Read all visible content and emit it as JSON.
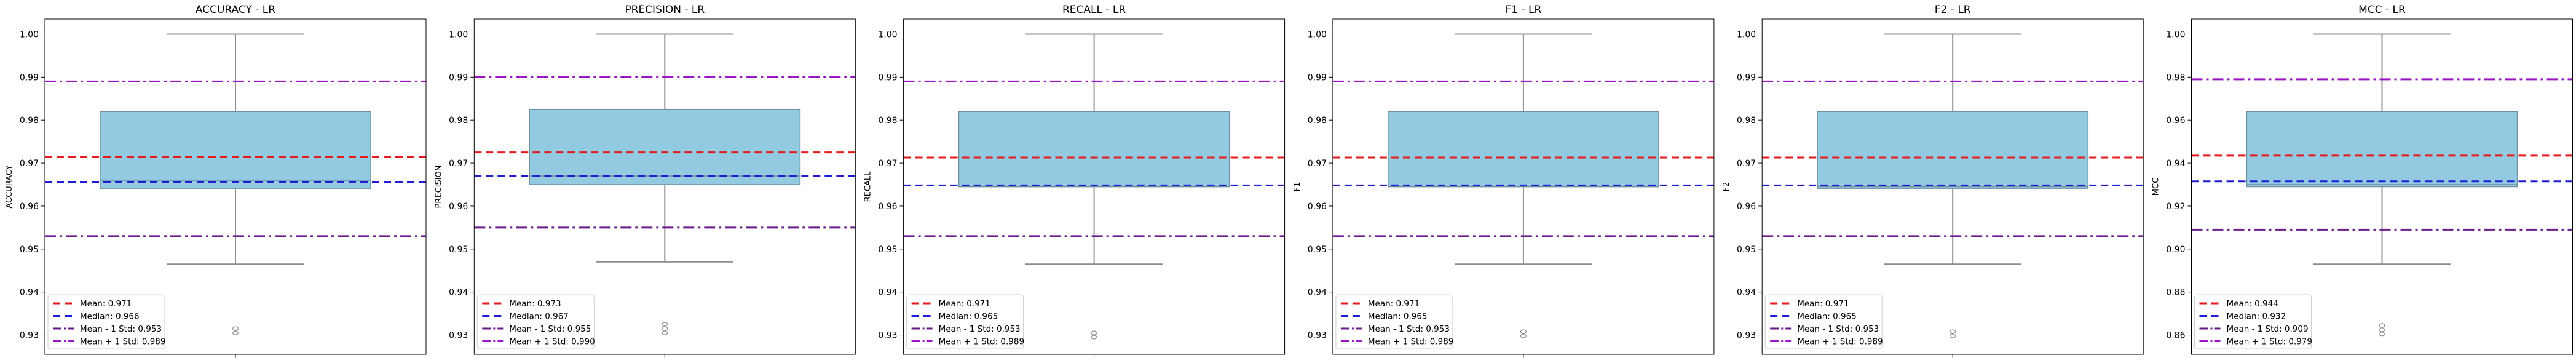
{
  "chart_data": [
    {
      "type": "box",
      "title": "ACCURACY - LR",
      "ylabel": "ACCURACY",
      "ylim": [
        0.9255,
        1.0035
      ],
      "yticks": [
        0.93,
        0.94,
        0.95,
        0.96,
        0.97,
        0.98,
        0.99,
        1.0
      ],
      "box": {
        "whisker_low": 0.9465,
        "q1": 0.964,
        "median": 0.966,
        "q3": 0.982,
        "whisker_high": 1.0
      },
      "outliers": [
        0.9305,
        0.9315
      ],
      "reference_lines": {
        "mean": 0.9715,
        "median": 0.9655,
        "mean_minus_std": 0.953,
        "mean_plus_std": 0.989
      },
      "legend": [
        "Mean: 0.971",
        "Median: 0.966",
        "Mean - 1 Std: 0.953",
        "Mean + 1 Std: 0.989"
      ],
      "legend_position": "lower-left"
    },
    {
      "type": "box",
      "title": "PRECISION - LR",
      "ylabel": "PRECISION",
      "ylim": [
        0.9255,
        1.0035
      ],
      "yticks": [
        0.93,
        0.94,
        0.95,
        0.96,
        0.97,
        0.98,
        0.99,
        1.0
      ],
      "box": {
        "whisker_low": 0.947,
        "q1": 0.965,
        "median": 0.967,
        "q3": 0.9825,
        "whisker_high": 1.0
      },
      "outliers": [
        0.9305,
        0.9315,
        0.9325
      ],
      "reference_lines": {
        "mean": 0.9725,
        "median": 0.967,
        "mean_minus_std": 0.955,
        "mean_plus_std": 0.99
      },
      "legend": [
        "Mean: 0.973",
        "Median: 0.967",
        "Mean - 1 Std: 0.955",
        "Mean + 1 Std: 0.990"
      ],
      "legend_position": "lower-left"
    },
    {
      "type": "box",
      "title": "RECALL - LR",
      "ylabel": "RECALL",
      "ylim": [
        0.9255,
        1.0035
      ],
      "yticks": [
        0.93,
        0.94,
        0.95,
        0.96,
        0.97,
        0.98,
        0.99,
        1.0
      ],
      "box": {
        "whisker_low": 0.9465,
        "q1": 0.9645,
        "median": 0.9645,
        "q3": 0.982,
        "whisker_high": 1.0
      },
      "outliers": [
        0.9295,
        0.9305
      ],
      "reference_lines": {
        "mean": 0.9713,
        "median": 0.9648,
        "mean_minus_std": 0.953,
        "mean_plus_std": 0.989
      },
      "legend": [
        "Mean: 0.971",
        "Median: 0.965",
        "Mean - 1 Std: 0.953",
        "Mean + 1 Std: 0.989"
      ],
      "legend_position": "lower-left"
    },
    {
      "type": "box",
      "title": "F1 - LR",
      "ylabel": "F1",
      "ylim": [
        0.9255,
        1.0035
      ],
      "yticks": [
        0.93,
        0.94,
        0.95,
        0.96,
        0.97,
        0.98,
        0.99,
        1.0
      ],
      "box": {
        "whisker_low": 0.9465,
        "q1": 0.9645,
        "median": 0.9645,
        "q3": 0.982,
        "whisker_high": 1.0
      },
      "outliers": [
        0.9298,
        0.9308
      ],
      "reference_lines": {
        "mean": 0.9713,
        "median": 0.9648,
        "mean_minus_std": 0.953,
        "mean_plus_std": 0.989
      },
      "legend": [
        "Mean: 0.971",
        "Median: 0.965",
        "Mean - 1 Std: 0.953",
        "Mean + 1 Std: 0.989"
      ],
      "legend_position": "lower-left"
    },
    {
      "type": "box",
      "title": "F2 - LR",
      "ylabel": "F2",
      "ylim": [
        0.9255,
        1.0035
      ],
      "yticks": [
        0.93,
        0.94,
        0.95,
        0.96,
        0.97,
        0.98,
        0.99,
        1.0
      ],
      "box": {
        "whisker_low": 0.9465,
        "q1": 0.964,
        "median": 0.9645,
        "q3": 0.982,
        "whisker_high": 1.0
      },
      "outliers": [
        0.9298,
        0.9308
      ],
      "reference_lines": {
        "mean": 0.9713,
        "median": 0.9648,
        "mean_minus_std": 0.953,
        "mean_plus_std": 0.989
      },
      "legend": [
        "Mean: 0.971",
        "Median: 0.965",
        "Mean - 1 Std: 0.953",
        "Mean + 1 Std: 0.989"
      ],
      "legend_position": "lower-left"
    },
    {
      "type": "box",
      "title": "MCC - LR",
      "ylabel": "MCC",
      "ylim": [
        0.851,
        1.007
      ],
      "yticks": [
        0.86,
        0.88,
        0.9,
        0.92,
        0.94,
        0.96,
        0.98,
        1.0
      ],
      "box": {
        "whisker_low": 0.893,
        "q1": 0.929,
        "median": 0.93,
        "q3": 0.964,
        "whisker_high": 1.0
      },
      "outliers": [
        0.8605,
        0.8625,
        0.8645
      ],
      "reference_lines": {
        "mean": 0.9435,
        "median": 0.9315,
        "mean_minus_std": 0.909,
        "mean_plus_std": 0.979
      },
      "legend": [
        "Mean: 0.944",
        "Median: 0.932",
        "Mean - 1 Std: 0.909",
        "Mean + 1 Std: 0.979"
      ],
      "legend_position": "lower-left"
    }
  ],
  "colors": {
    "box_fill": "#92cae1",
    "box_edge": "#6f8fa0",
    "whisker": "#8c8c8c",
    "mean_line": "#e41a1c",
    "median_line": "#1f1fd1",
    "mean_minus_std_line": "#6a1b8a",
    "mean_plus_std_line": "#9a16c0",
    "axes": "#000000"
  }
}
